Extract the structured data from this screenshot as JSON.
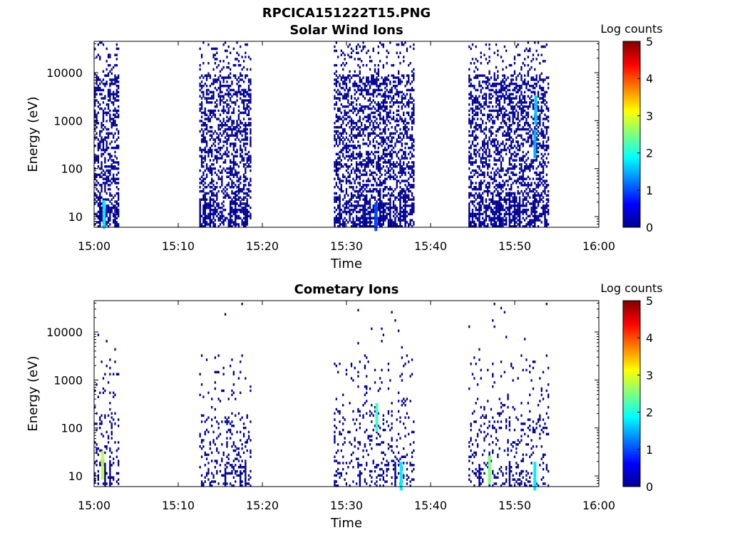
{
  "figure": {
    "title": "RPCICA151222T15.PNG"
  },
  "colorscale": {
    "stops": [
      "#00008f",
      "#0000ff",
      "#007fff",
      "#00ffff",
      "#7fff7f",
      "#ffff00",
      "#ff7f00",
      "#ff0000",
      "#7f0000"
    ]
  },
  "chart_data": [
    {
      "type": "heatmap",
      "title": "Solar Wind Ions",
      "xlabel": "Time",
      "ylabel": "Energy (eV)",
      "x_ticks": [
        "15:00",
        "15:10",
        "15:20",
        "15:30",
        "15:40",
        "15:50",
        "16:00"
      ],
      "x_range_minutes": [
        0,
        60
      ],
      "y_scale": "log",
      "y_ticks": [
        "10",
        "100",
        "1000",
        "10000"
      ],
      "y_range": [
        6,
        45000
      ],
      "colorbar": {
        "label": "Log counts",
        "range": [
          0,
          5
        ],
        "ticks": [
          "0",
          "1",
          "2",
          "3",
          "4",
          "5"
        ]
      },
      "data_intervals_minutes": [
        [
          0,
          3
        ],
        [
          12.5,
          18.5
        ],
        [
          28.5,
          38
        ],
        [
          44.5,
          54
        ]
      ],
      "hot_spots": [
        {
          "time_min": 1.2,
          "energy_ev": 10,
          "log_counts": 1.8
        },
        {
          "time_min": 52.5,
          "energy_ev": 1500,
          "log_counts": 1.6
        },
        {
          "time_min": 52.4,
          "energy_ev": 300,
          "log_counts": 1.5
        },
        {
          "time_min": 33.5,
          "energy_ev": 9,
          "log_counts": 1.0
        }
      ]
    },
    {
      "type": "heatmap",
      "title": "Cometary Ions",
      "xlabel": "Time",
      "ylabel": "Energy (eV)",
      "x_ticks": [
        "15:00",
        "15:10",
        "15:20",
        "15:30",
        "15:40",
        "15:50",
        "16:00"
      ],
      "x_range_minutes": [
        0,
        60
      ],
      "y_scale": "log",
      "y_ticks": [
        "10",
        "100",
        "1000",
        "10000"
      ],
      "y_range": [
        6,
        45000
      ],
      "colorbar": {
        "label": "Log counts",
        "range": [
          0,
          5
        ],
        "ticks": [
          "0",
          "1",
          "2",
          "3",
          "4",
          "5"
        ]
      },
      "data_intervals_minutes": [
        [
          0,
          3
        ],
        [
          12.5,
          18.5
        ],
        [
          28.5,
          38
        ],
        [
          44.5,
          54
        ]
      ],
      "hot_spots": [
        {
          "time_min": 1.0,
          "energy_ev": 15,
          "log_counts": 2.8
        },
        {
          "time_min": 33.6,
          "energy_ev": 150,
          "log_counts": 2.2
        },
        {
          "time_min": 47.0,
          "energy_ev": 12,
          "log_counts": 2.5
        },
        {
          "time_min": 52.4,
          "energy_ev": 9,
          "log_counts": 1.8
        },
        {
          "time_min": 36.5,
          "energy_ev": 9,
          "log_counts": 1.8
        }
      ]
    }
  ]
}
